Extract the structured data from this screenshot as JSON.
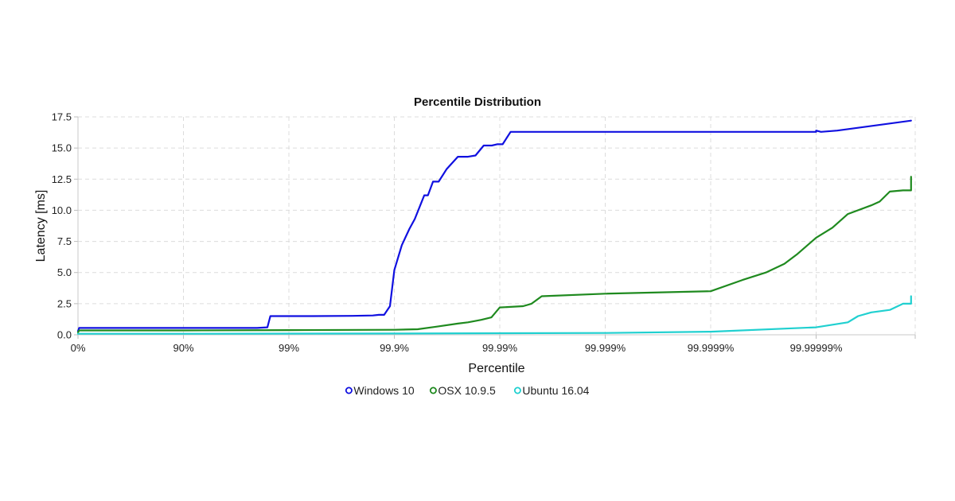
{
  "chart_data": {
    "type": "line",
    "title": "Percentile Distribution",
    "xlabel": "Percentile",
    "ylabel": "Latency [ms]",
    "x_scale": "percentile (log of 1/(1-p))",
    "x_tick_labels": [
      "0%",
      "90%",
      "99%",
      "99.9%",
      "99.99%",
      "99.999%",
      "99.9999%",
      "99.99999%"
    ],
    "x_range_nines": [
      0,
      7.9
    ],
    "ylim": [
      0,
      17.5
    ],
    "y_ticks": [
      "0.0",
      "2.5",
      "5.0",
      "7.5",
      "10.0",
      "12.5",
      "15.0",
      "17.5"
    ],
    "grid": true,
    "legend_position": "bottom-center",
    "series": [
      {
        "name": "Windows 10",
        "color": "#1010e0",
        "points": [
          [
            "0%",
            0.3
          ],
          [
            "2.5%",
            0.55
          ],
          [
            "50%",
            0.55
          ],
          [
            "85%",
            0.55
          ],
          [
            "95%",
            0.55
          ],
          [
            "98%",
            0.55
          ],
          [
            "98.4%",
            0.6
          ],
          [
            "98.5%",
            1.5
          ],
          [
            "99.4%",
            1.5
          ],
          [
            "99.75%",
            1.52
          ],
          [
            "99.84%",
            1.55
          ],
          [
            "99.86%",
            1.6
          ],
          [
            "99.875%",
            1.6
          ],
          [
            "99.89%",
            2.3
          ],
          [
            "99.9%",
            5.2
          ],
          [
            "99.915%",
            7.2
          ],
          [
            "99.928%",
            8.5
          ],
          [
            "99.936%",
            9.3
          ],
          [
            "99.948%",
            11.2
          ],
          [
            "99.952%",
            11.2
          ],
          [
            "99.957%",
            12.3
          ],
          [
            "99.962%",
            12.3
          ],
          [
            "99.968%",
            13.3
          ],
          [
            "99.975%",
            14.3
          ],
          [
            "99.98%",
            14.3
          ],
          [
            "99.983%",
            14.4
          ],
          [
            "99.9858%",
            15.2
          ],
          [
            "99.9881%",
            15.2
          ],
          [
            "99.9894%",
            15.3
          ],
          [
            "99.9906%",
            15.3
          ],
          [
            "99.9921%",
            16.3
          ],
          [
            "99.99999%",
            16.3
          ],
          [
            "99.999991%",
            16.3
          ],
          [
            "99.9999937%",
            16.4
          ],
          [
            "99.99999%",
            16.4
          ],
          [
            "99.99999%",
            16.3
          ],
          [
            "99.99999%",
            16.4
          ],
          [
            "99.999999%",
            17.2
          ]
        ]
      },
      {
        "name": "OSX 10.9.5",
        "color": "#1f8a1f",
        "points": [
          [
            "0%",
            0.2
          ],
          [
            "2.5%",
            0.35
          ],
          [
            "90%",
            0.35
          ],
          [
            "99%",
            0.38
          ],
          [
            "99.9%",
            0.4
          ],
          [
            "99.94%",
            0.45
          ],
          [
            "99.96%",
            0.65
          ],
          [
            "99.975%",
            0.9
          ],
          [
            "99.98%",
            1.0
          ],
          [
            "99.985%",
            1.2
          ],
          [
            "99.988%",
            1.4
          ],
          [
            "99.99%",
            2.2
          ],
          [
            "99.994%",
            2.3
          ],
          [
            "99.995%",
            2.5
          ],
          [
            "99.996%",
            3.1
          ],
          [
            "99.999%",
            3.3
          ],
          [
            "99.9999%",
            3.5
          ],
          [
            "99.99995%",
            4.4
          ],
          [
            "99.99997%",
            5.0
          ],
          [
            "99.99998%",
            5.7
          ],
          [
            "99.999985%",
            6.5
          ],
          [
            "99.99999%",
            7.8
          ],
          [
            "99.999993%",
            8.6
          ],
          [
            "99.999995%",
            9.7
          ],
          [
            "99.999997%",
            10.4
          ],
          [
            "99.9999975%",
            10.7
          ],
          [
            "99.999998%",
            11.5
          ],
          [
            "99.9999985%",
            11.6
          ],
          [
            "99.9999990%",
            11.6
          ],
          [
            "99.9999993%",
            12.7
          ]
        ]
      },
      {
        "name": "Ubuntu 16.04",
        "color": "#20d0d0",
        "points": [
          [
            "0%",
            0.08
          ],
          [
            "90%",
            0.08
          ],
          [
            "99.9%",
            0.1
          ],
          [
            "99.999%",
            0.15
          ],
          [
            "99.9999%",
            0.25
          ],
          [
            "99.99999%",
            0.6
          ],
          [
            "99.999995%",
            1.0
          ],
          [
            "99.999996%",
            1.5
          ],
          [
            "99.999997%",
            1.8
          ],
          [
            "99.999998%",
            2.0
          ],
          [
            "99.9999985%",
            2.5
          ],
          [
            "99.9999993%",
            2.5
          ],
          [
            "99.9999994%",
            3.1
          ]
        ]
      }
    ]
  }
}
